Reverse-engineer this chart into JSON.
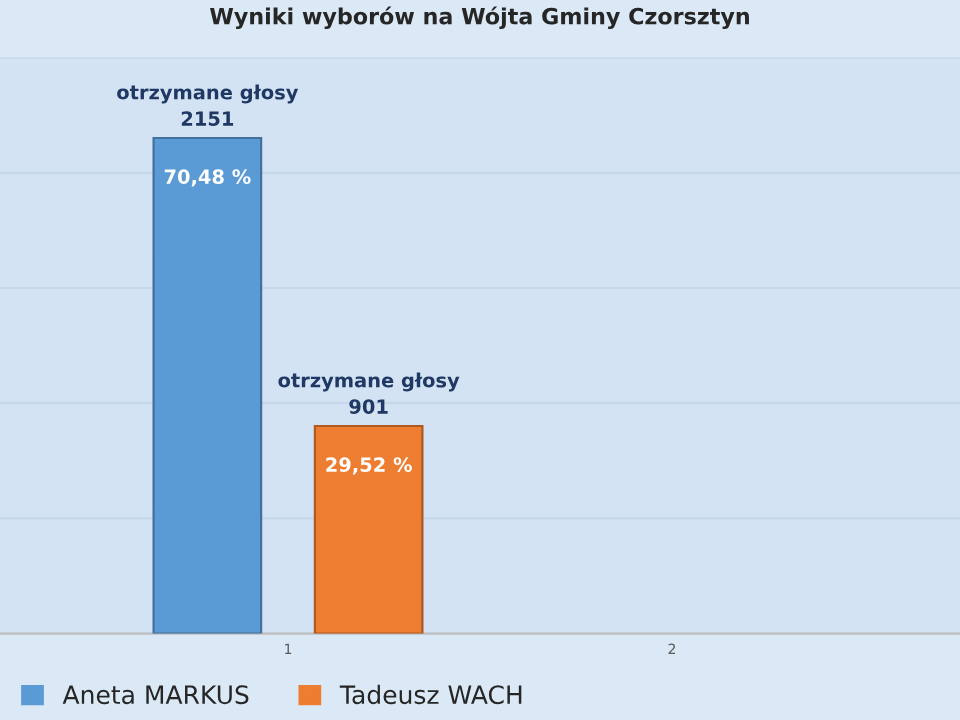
{
  "chart_data": {
    "type": "bar",
    "title": "Wyniki wyborów na Wójta Gminy Czorsztyn",
    "categories": [
      "1",
      "2"
    ],
    "series": [
      {
        "name": "Aneta MARKUS",
        "color": "#5b9bd5",
        "values": [
          2151,
          null
        ],
        "value_labels": [
          "otrzymane głosy\n2151",
          null
        ]
      },
      {
        "name": "Tadeusz WACH",
        "color": "#ed7d31",
        "values": [
          901,
          null
        ],
        "value_labels": [
          "otrzymane głosy\n901",
          null
        ]
      }
    ],
    "annotations": [
      "70,48 %",
      "29,52 %"
    ],
    "ylim": [
      0,
      2500
    ],
    "yticks": [
      {
        "value": 0,
        "label": null
      },
      {
        "value": 500,
        "label": null
      },
      {
        "value": 1000,
        "label": null
      },
      {
        "value": 1500,
        "label": null
      },
      {
        "value": 2000,
        "label": null
      },
      {
        "value": 2500,
        "label": null
      }
    ],
    "tick_labels": "x",
    "grid": "y",
    "legend": "bottom"
  }
}
